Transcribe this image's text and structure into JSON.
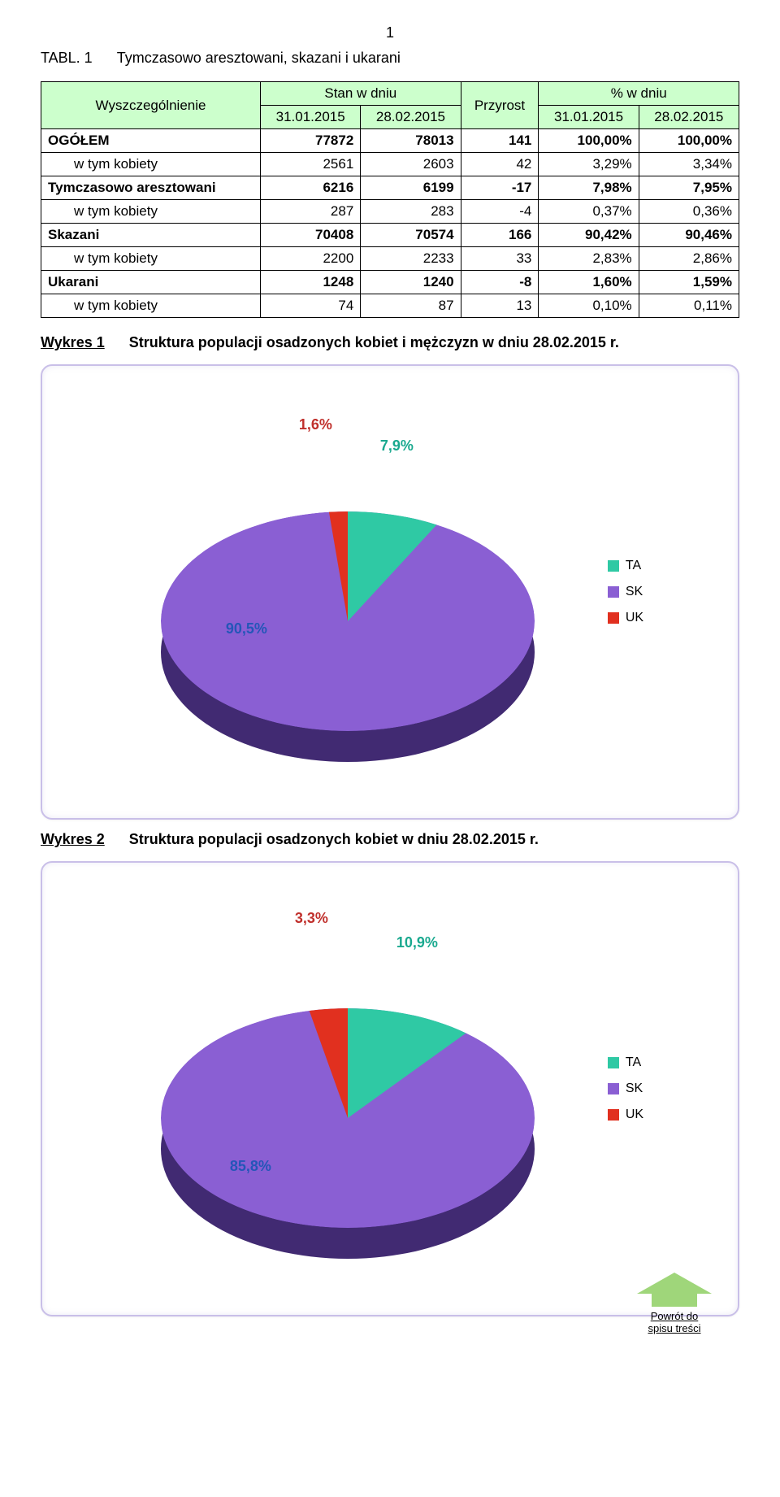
{
  "page_number": "1",
  "tabl": {
    "label": "TABL. 1",
    "title": "Tymczasowo aresztowani, skazani i ukarani"
  },
  "table": {
    "header": {
      "col1": "Wyszczególnienie",
      "stan": "Stan w dniu",
      "przyrost": "Przyrost",
      "pct": "% w dniu",
      "d1": "31.01.2015",
      "d2": "28.02.2015",
      "d3": "31.01.2015",
      "d4": "28.02.2015"
    },
    "rows": [
      {
        "bold": true,
        "indent": false,
        "label": "OGÓŁEM",
        "v1": "77872",
        "v2": "78013",
        "d": "141",
        "p1": "100,00%",
        "p2": "100,00%"
      },
      {
        "bold": false,
        "indent": true,
        "label": "w tym kobiety",
        "v1": "2561",
        "v2": "2603",
        "d": "42",
        "p1": "3,29%",
        "p2": "3,34%"
      },
      {
        "bold": true,
        "indent": false,
        "label": "Tymczasowo aresztowani",
        "v1": "6216",
        "v2": "6199",
        "d": "-17",
        "p1": "7,98%",
        "p2": "7,95%"
      },
      {
        "bold": false,
        "indent": true,
        "label": "w tym kobiety",
        "v1": "287",
        "v2": "283",
        "d": "-4",
        "p1": "0,37%",
        "p2": "0,36%"
      },
      {
        "bold": true,
        "indent": false,
        "label": "Skazani",
        "v1": "70408",
        "v2": "70574",
        "d": "166",
        "p1": "90,42%",
        "p2": "90,46%"
      },
      {
        "bold": false,
        "indent": true,
        "label": "w tym kobiety",
        "v1": "2200",
        "v2": "2233",
        "d": "33",
        "p1": "2,83%",
        "p2": "2,86%"
      },
      {
        "bold": true,
        "indent": false,
        "label": "Ukarani",
        "v1": "1248",
        "v2": "1240",
        "d": "-8",
        "p1": "1,60%",
        "p2": "1,59%"
      },
      {
        "bold": false,
        "indent": true,
        "label": "w tym kobiety",
        "v1": "74",
        "v2": "87",
        "d": "13",
        "p1": "0,10%",
        "p2": "0,11%"
      }
    ],
    "header_bg": "#ccffcc",
    "border_color": "#000000"
  },
  "wykres1": {
    "label": "Wykres 1",
    "title": "Struktura populacji osadzonych kobiet i mężczyzn w dniu 28.02.2015 r."
  },
  "wykres2": {
    "label": "Wykres 2",
    "title": "Struktura populacji osadzonych kobiet w dniu 28.02.2015 r."
  },
  "chart1": {
    "type": "pie-3d",
    "series": [
      {
        "name": "TA",
        "value": 7.9,
        "label": "7,9%",
        "color": "#2fc9a4",
        "label_color": "#1aa98f"
      },
      {
        "name": "SK",
        "value": 90.5,
        "label": "90,5%",
        "color": "#8a5fd3",
        "label_color": "#2456b8"
      },
      {
        "name": "UK",
        "value": 1.6,
        "label": "1,6%",
        "color": "#e1301f",
        "label_color": "#c0302c"
      }
    ],
    "depth_color": "#5a3b9e",
    "frame_border": "#c9bfe8",
    "legend": {
      "ta": "TA",
      "sk": "SK",
      "uk": "UK"
    }
  },
  "chart2": {
    "type": "pie-3d",
    "series": [
      {
        "name": "TA",
        "value": 10.9,
        "label": "10,9%",
        "color": "#2fc9a4",
        "label_color": "#1aa98f"
      },
      {
        "name": "SK",
        "value": 85.8,
        "label": "85,8%",
        "color": "#8a5fd3",
        "label_color": "#2456b8"
      },
      {
        "name": "UK",
        "value": 3.3,
        "label": "3,3%",
        "color": "#e1301f",
        "label_color": "#c0302c"
      }
    ],
    "depth_color": "#5a3b9e",
    "frame_border": "#c9bfe8",
    "legend": {
      "ta": "TA",
      "sk": "SK",
      "uk": "UK"
    }
  },
  "return_link": {
    "line1": "Powrót do",
    "line2": "spisu treści",
    "arrow_color": "#9fd67a"
  }
}
